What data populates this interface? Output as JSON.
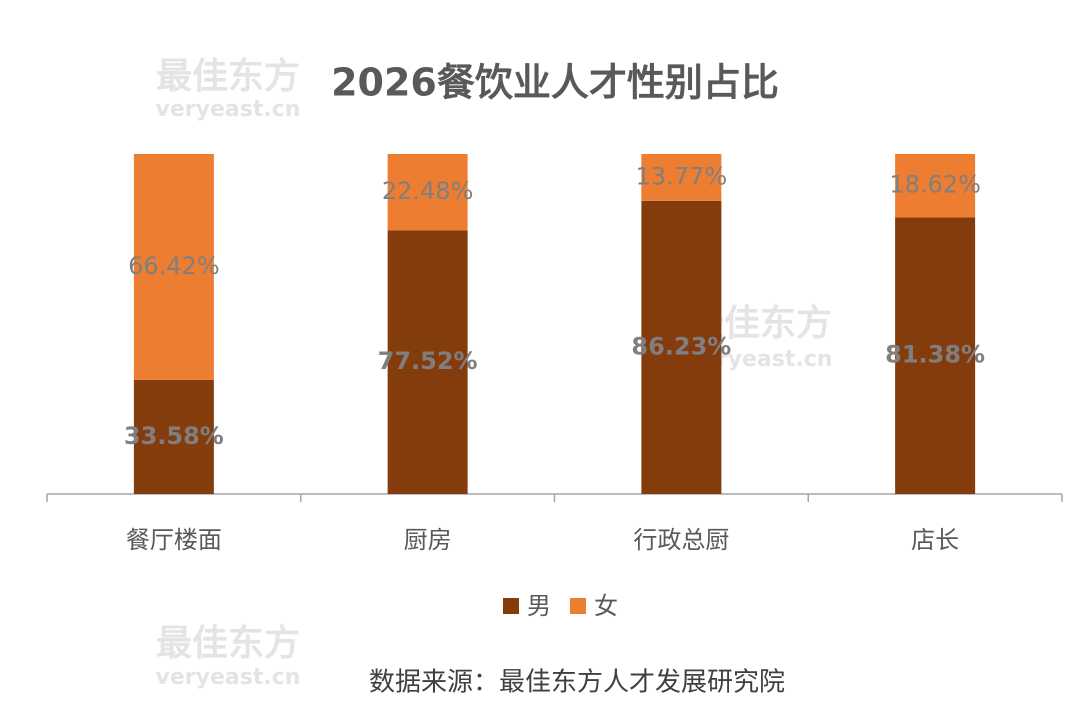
{
  "chart_data": {
    "type": "bar",
    "stacked": true,
    "title": "2026餐饮业人才性别占比",
    "categories": [
      "餐厅楼面",
      "厨房",
      "行政总厨",
      "店长"
    ],
    "series": [
      {
        "name": "男",
        "color": "#843c0c",
        "values": [
          33.58,
          77.52,
          86.23,
          81.38
        ],
        "value_labels": [
          "33.58%",
          "77.52%",
          "86.23%",
          "81.38%"
        ]
      },
      {
        "name": "女",
        "color": "#ed7d31",
        "values": [
          66.42,
          22.48,
          13.77,
          18.62
        ],
        "value_labels": [
          "66.42%",
          "22.48%",
          "13.77%",
          "18.62%"
        ]
      }
    ],
    "source": "数据来源：最佳东方人才发展研究院",
    "watermark": {
      "name": "最佳东方",
      "url": "veryeast.cn"
    }
  }
}
